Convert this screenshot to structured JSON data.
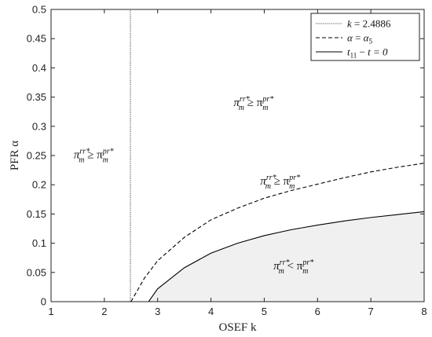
{
  "chart_data": {
    "type": "line",
    "xlabel": "OSEF k",
    "ylabel": "PFR α",
    "xlim": [
      1,
      8
    ],
    "ylim": [
      0,
      0.5
    ],
    "xticks": [
      1,
      2,
      3,
      4,
      5,
      6,
      7,
      8
    ],
    "xtick_labels": [
      "1",
      "2",
      "3",
      "4",
      "5",
      "6",
      "7",
      "8"
    ],
    "yticks": [
      0,
      0.05,
      0.1,
      0.15,
      0.2,
      0.25,
      0.3,
      0.35,
      0.4,
      0.45,
      0.5
    ],
    "ytick_labels": [
      "0",
      "0.05",
      "0.1",
      "0.15",
      "0.2",
      "0.25",
      "0.3",
      "0.35",
      "0.4",
      "0.45",
      "0.5"
    ],
    "legend_position": "top-right",
    "series": [
      {
        "name": "k = 2.4886",
        "style": "dotted",
        "x": [
          2.4886,
          2.4886
        ],
        "y": [
          0,
          0.5
        ]
      },
      {
        "name": "α = α5",
        "style": "dashed",
        "x": [
          2.5,
          2.75,
          3,
          3.5,
          4,
          4.5,
          5,
          5.5,
          6,
          6.5,
          7,
          7.5,
          8
        ],
        "y": [
          0,
          0.04,
          0.07,
          0.11,
          0.14,
          0.16,
          0.177,
          0.19,
          0.201,
          0.212,
          0.222,
          0.23,
          0.237
        ]
      },
      {
        "name": "t11 − t = 0",
        "style": "solid",
        "x": [
          2.83,
          3,
          3.5,
          4,
          4.5,
          5,
          5.5,
          6,
          6.5,
          7,
          7.5,
          8
        ],
        "y": [
          0,
          0.022,
          0.058,
          0.083,
          0.1,
          0.113,
          0.123,
          0.131,
          0.138,
          0.144,
          0.149,
          0.154
        ]
      }
    ],
    "annotations": [
      {
        "id": "left",
        "x": 1.8,
        "y": 0.245,
        "parts": [
          "π",
          "rr*",
          "m",
          " ≥ π",
          "pr*",
          "m"
        ]
      },
      {
        "id": "top",
        "x": 4.8,
        "y": 0.335,
        "parts": [
          "π",
          "rr*",
          "m",
          " ≥ π",
          "pr*",
          "m"
        ]
      },
      {
        "id": "middle",
        "x": 5.3,
        "y": 0.2,
        "parts": [
          "π",
          "rr*",
          "m",
          " ≥ π",
          "pr*",
          "m"
        ]
      },
      {
        "id": "bottom",
        "x": 5.55,
        "y": 0.055,
        "parts": [
          "π",
          "rr*",
          "m",
          " < π",
          "pr*",
          "m"
        ]
      }
    ],
    "shaded_region": "below t11 − t = 0 curve",
    "grid": false
  },
  "legend": {
    "items": [
      {
        "lhs": "k",
        "op": " = ",
        "rhs": "2.4886",
        "rhs_sub": ""
      },
      {
        "lhs": "α",
        "op": " = ",
        "rhs": "α",
        "rhs_sub": "5"
      },
      {
        "lhs": "t",
        "lhs_sub": "11",
        "op": " − ",
        "rhs": "t = 0",
        "rhs_sub": ""
      }
    ]
  },
  "colors": {
    "axis": "#222222",
    "line": "#000000",
    "shade": "#f0f0f0",
    "vline": "#555555"
  }
}
